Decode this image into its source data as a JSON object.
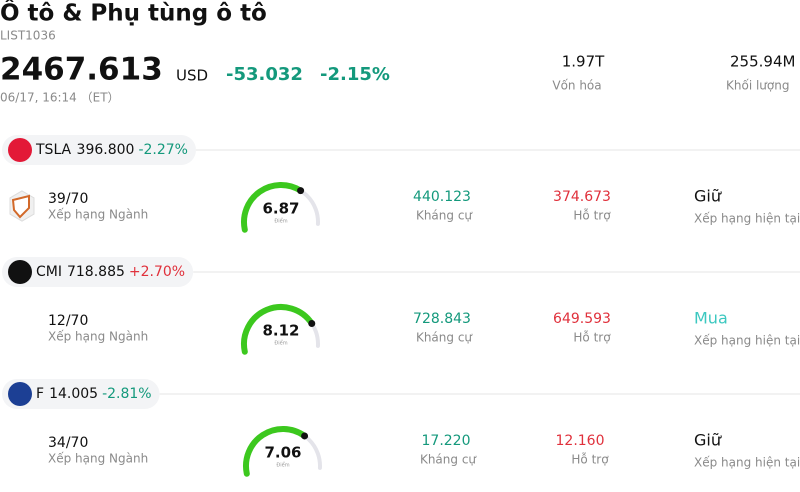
{
  "header": {
    "title": "Ô tô & Phụ tùng ô tô",
    "code": "LIST1036",
    "price": "2467.613",
    "currency": "USD",
    "change": "-53.032",
    "change_pct": "-2.15%",
    "time": "06/17, 16:14 （ET）",
    "stats": [
      {
        "value": "1.97T",
        "label": "Vốn hóa"
      },
      {
        "value": "255.94M",
        "label": "Khối lượng"
      }
    ]
  },
  "stocks": [
    {
      "ticker": "TSLA",
      "price": "396.800",
      "change": "-2.27%",
      "rank": "39/70",
      "rank_label": "Xếp hạng Ngành",
      "score": 6.87,
      "score_label": "Điểm",
      "resistance": "440.123",
      "resistance_label": "Kháng cự",
      "support": "374.673",
      "support_label": "Hỗ trợ",
      "rating": "Giữ",
      "rating_label": "Xếp hạng hiện tại"
    },
    {
      "ticker": "CMI",
      "price": "718.885",
      "change": "+2.70%",
      "rank": "12/70",
      "rank_label": "Xếp hạng Ngành",
      "score": 8.12,
      "score_label": "Điểm",
      "resistance": "728.843",
      "resistance_label": "Kháng cự",
      "support": "649.593",
      "support_label": "Hỗ trợ",
      "rating": "Mua",
      "rating_label": "Xếp hạng hiện tại"
    },
    {
      "ticker": "F",
      "price": "14.005",
      "change": "-2.81%",
      "rank": "34/70",
      "rank_label": "Xếp hạng Ngành",
      "score": 7.06,
      "score_label": "Điểm",
      "resistance": "17.220",
      "resistance_label": "Kháng cự",
      "support": "12.160",
      "support_label": "Hỗ trợ",
      "rating": "Giữ",
      "rating_label": "Xếp hạng hiện tại"
    }
  ]
}
